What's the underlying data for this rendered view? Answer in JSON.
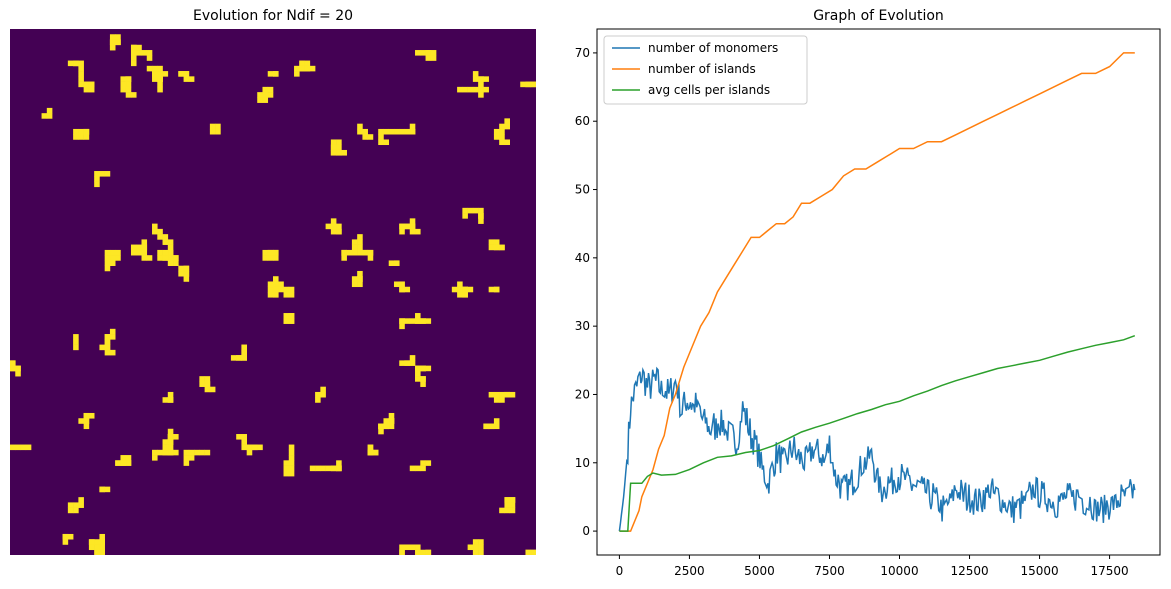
{
  "left_panel": {
    "title": "Evolution for Ndif = 20",
    "grid_size": 100,
    "colors": {
      "background": "#440154",
      "occupied": "#fde725"
    }
  },
  "chart_data": {
    "type": "line",
    "title": "Graph of Evolution",
    "xlabel": "",
    "ylabel": "",
    "xlim": [
      -800,
      19300
    ],
    "ylim": [
      -3.5,
      73.5
    ],
    "xticks": [
      0,
      2500,
      5000,
      7500,
      10000,
      12500,
      15000,
      17500
    ],
    "yticks": [
      0,
      10,
      20,
      30,
      40,
      50,
      60,
      70
    ],
    "grid": false,
    "legend_position": "upper-left",
    "series": [
      {
        "name": "number of monomers",
        "color": "#1f77b4",
        "x": [
          0,
          150,
          300,
          400,
          500,
          700,
          800,
          1000,
          1300,
          1500,
          1800,
          2000,
          2200,
          2500,
          2800,
          3000,
          3300,
          3600,
          3900,
          4200,
          4400,
          4700,
          4900,
          5100,
          5300,
          5600,
          5900,
          6200,
          6600,
          7000,
          7300,
          7500,
          7700,
          8000,
          8300,
          8600,
          9000,
          9300,
          9600,
          10000,
          10400,
          10800,
          11200,
          11600,
          12000,
          12400,
          12800,
          13200,
          13600,
          14000,
          14400,
          14800,
          15200,
          15600,
          16000,
          16400,
          16800,
          17200,
          17600,
          18000,
          18400
        ],
        "y": [
          0,
          5,
          12,
          18,
          20,
          22,
          23,
          21,
          22,
          21,
          20,
          22,
          18,
          19,
          18,
          16,
          15,
          16,
          14,
          13,
          18,
          14,
          12,
          9,
          7,
          11,
          10,
          12,
          10,
          12,
          10,
          13,
          8,
          6,
          7,
          9,
          11,
          6,
          7,
          8,
          7,
          6,
          5,
          3,
          6,
          5,
          4,
          6,
          5,
          3,
          4,
          6,
          5,
          4,
          5,
          5,
          4,
          3,
          4,
          5,
          6
        ]
      },
      {
        "name": "number of islands",
        "color": "#ff7f0e",
        "x": [
          0,
          400,
          500,
          700,
          800,
          1000,
          1200,
          1400,
          1600,
          1800,
          2000,
          2300,
          2600,
          2900,
          3200,
          3500,
          3800,
          4100,
          4400,
          4700,
          5000,
          5300,
          5600,
          5900,
          6200,
          6500,
          6800,
          7200,
          7600,
          8000,
          8400,
          8800,
          9200,
          9600,
          10000,
          10500,
          11000,
          11500,
          12000,
          12500,
          13000,
          13500,
          14000,
          14500,
          15000,
          15500,
          16000,
          16500,
          17000,
          17500,
          18000,
          18400
        ],
        "y": [
          0,
          0,
          1,
          3,
          5,
          7,
          9,
          12,
          14,
          18,
          20,
          24,
          27,
          30,
          32,
          35,
          37,
          39,
          41,
          43,
          43,
          44,
          45,
          45,
          46,
          48,
          48,
          49,
          50,
          52,
          53,
          53,
          54,
          55,
          56,
          56,
          57,
          57,
          58,
          59,
          60,
          61,
          62,
          63,
          64,
          65,
          66,
          67,
          67,
          68,
          70,
          70
        ]
      },
      {
        "name": "avg cells per islands",
        "color": "#2ca02c",
        "x": [
          0,
          300,
          400,
          800,
          1000,
          1200,
          1500,
          2000,
          2500,
          3000,
          3500,
          4000,
          4500,
          5000,
          5500,
          6000,
          6500,
          7000,
          7500,
          8000,
          8500,
          9000,
          9500,
          10000,
          10500,
          11000,
          11500,
          12000,
          12500,
          13000,
          13500,
          14000,
          14500,
          15000,
          15500,
          16000,
          16500,
          17000,
          17500,
          18000,
          18400
        ],
        "y": [
          0,
          0,
          7,
          7,
          8,
          8.5,
          8.2,
          8.3,
          9,
          10,
          10.8,
          11,
          11.5,
          11.8,
          12.5,
          13.5,
          14.5,
          15.2,
          15.8,
          16.5,
          17.2,
          17.8,
          18.5,
          19,
          19.8,
          20.5,
          21.3,
          22,
          22.6,
          23.2,
          23.8,
          24.2,
          24.6,
          25,
          25.6,
          26.2,
          26.7,
          27.2,
          27.6,
          28,
          28.6
        ]
      }
    ]
  }
}
